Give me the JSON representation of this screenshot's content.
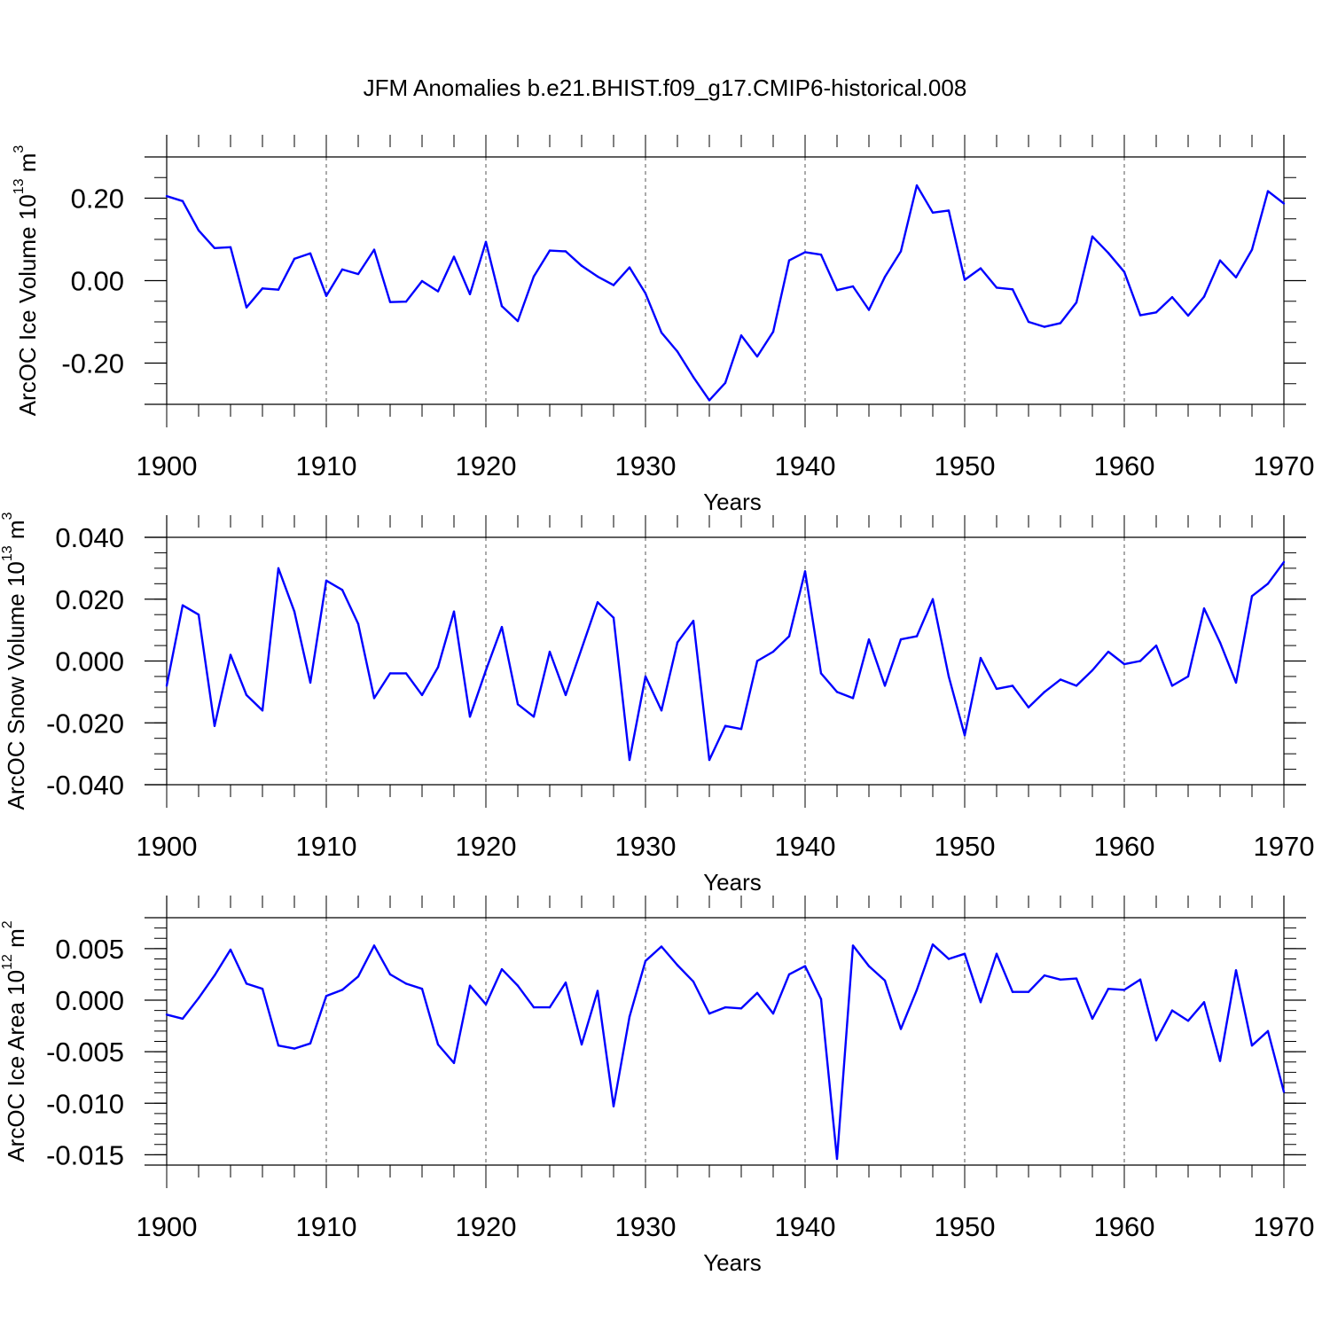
{
  "title": "JFM Anomalies b.e21.BHIST.f09_g17.CMIP6-historical.008",
  "line_color": "#0000ff",
  "chart_data": [
    {
      "type": "line",
      "title": "JFM Anomalies b.e21.BHIST.f09_g17.CMIP6-historical.008",
      "xlabel": "Years",
      "ylabel": "ArcOC Ice Volume 10",
      "ylabel_sup": "13",
      "ylabel_unit": " m",
      "ylabel_unit_sup": "3",
      "xlim": [
        1900,
        1970
      ],
      "ylim": [
        -0.3,
        0.3
      ],
      "xticks": [
        1900,
        1910,
        1920,
        1930,
        1940,
        1950,
        1960,
        1970
      ],
      "xtick_labels": [
        "1900",
        "1910",
        "1920",
        "1930",
        "1940",
        "1950",
        "1960",
        "1970"
      ],
      "yticks": [
        -0.2,
        0.0,
        0.2
      ],
      "ytick_labels": [
        "-0.20",
        "0.00",
        "0.20"
      ],
      "yminor": 0.05,
      "x_start": 1900,
      "values": [
        0.205,
        0.193,
        0.122,
        0.079,
        0.081,
        -0.065,
        -0.019,
        -0.022,
        0.053,
        0.066,
        -0.037,
        0.027,
        0.016,
        0.075,
        -0.052,
        -0.051,
        -0.001,
        -0.026,
        0.058,
        -0.033,
        0.094,
        -0.062,
        -0.098,
        0.01,
        0.073,
        0.071,
        0.036,
        0.01,
        -0.011,
        0.032,
        -0.031,
        -0.126,
        -0.172,
        -0.234,
        -0.29,
        -0.248,
        -0.133,
        -0.184,
        -0.124,
        0.049,
        0.069,
        0.063,
        -0.023,
        -0.014,
        -0.071,
        0.009,
        0.071,
        0.231,
        0.165,
        0.17,
        0.002,
        0.03,
        -0.017,
        -0.021,
        -0.1,
        -0.112,
        -0.103,
        -0.053,
        0.107,
        0.067,
        0.021,
        -0.084,
        -0.077,
        -0.04,
        -0.085,
        -0.039,
        0.049,
        0.008,
        0.075,
        0.217,
        0.187
      ]
    },
    {
      "type": "line",
      "xlabel": "Years",
      "ylabel": "ArcOC Snow Volume 10",
      "ylabel_sup": "13",
      "ylabel_unit": " m",
      "ylabel_unit_sup": "3",
      "xlim": [
        1900,
        1970
      ],
      "ylim": [
        -0.04,
        0.04
      ],
      "xticks": [
        1900,
        1910,
        1920,
        1930,
        1940,
        1950,
        1960,
        1970
      ],
      "xtick_labels": [
        "1900",
        "1910",
        "1920",
        "1930",
        "1940",
        "1950",
        "1960",
        "1970"
      ],
      "yticks": [
        -0.04,
        -0.02,
        0.0,
        0.02,
        0.04
      ],
      "ytick_labels": [
        "-0.040",
        "-0.020",
        "0.000",
        "0.020",
        "0.040"
      ],
      "yminor": 0.005,
      "x_start": 1900,
      "values": [
        -0.008,
        0.018,
        0.015,
        -0.021,
        0.002,
        -0.011,
        -0.016,
        0.03,
        0.016,
        -0.007,
        0.026,
        0.023,
        0.012,
        -0.012,
        -0.004,
        -0.004,
        -0.011,
        -0.002,
        0.016,
        -0.018,
        -0.003,
        0.011,
        -0.014,
        -0.018,
        0.003,
        -0.011,
        0.004,
        0.019,
        0.014,
        -0.032,
        -0.005,
        -0.016,
        0.006,
        0.013,
        -0.032,
        -0.021,
        -0.022,
        0.0,
        0.003,
        0.008,
        0.029,
        -0.004,
        -0.01,
        -0.012,
        0.007,
        -0.008,
        0.007,
        0.008,
        0.02,
        -0.005,
        -0.024,
        0.001,
        -0.009,
        -0.008,
        -0.015,
        -0.01,
        -0.006,
        -0.008,
        -0.003,
        0.003,
        -0.001,
        0.0,
        0.005,
        -0.008,
        -0.005,
        0.017,
        0.006,
        -0.007,
        0.021,
        0.025,
        0.032
      ]
    },
    {
      "type": "line",
      "xlabel": "Years",
      "ylabel": "ArcOC Ice Area 10",
      "ylabel_sup": "12",
      "ylabel_unit": " m",
      "ylabel_unit_sup": "2",
      "xlim": [
        1900,
        1970
      ],
      "ylim": [
        -0.016,
        0.008
      ],
      "xticks": [
        1900,
        1910,
        1920,
        1930,
        1940,
        1950,
        1960,
        1970
      ],
      "xtick_labels": [
        "1900",
        "1910",
        "1920",
        "1930",
        "1940",
        "1950",
        "1960",
        "1970"
      ],
      "yticks": [
        -0.015,
        -0.01,
        -0.005,
        0.0,
        0.005
      ],
      "ytick_labels": [
        "-0.015",
        "-0.010",
        "-0.005",
        "0.000",
        "0.005"
      ],
      "yminor": 0.001,
      "x_start": 1900,
      "values": [
        -0.0014,
        -0.0018,
        0.0002,
        0.0024,
        0.0049,
        0.0016,
        0.0011,
        -0.0044,
        -0.0047,
        -0.0042,
        0.0004,
        0.001,
        0.0023,
        0.0053,
        0.0025,
        0.0016,
        0.0011,
        -0.0043,
        -0.0061,
        0.0014,
        -0.0004,
        0.003,
        0.0014,
        -0.0007,
        -0.0007,
        0.0017,
        -0.0043,
        0.0009,
        -0.0103,
        -0.0016,
        0.0038,
        0.0052,
        0.0034,
        0.0018,
        -0.0013,
        -0.0007,
        -0.0008,
        0.0007,
        -0.0013,
        0.0025,
        0.0033,
        0.0001,
        -0.0154,
        0.0053,
        0.0033,
        0.0019,
        -0.0028,
        0.001,
        0.0054,
        0.004,
        0.0045,
        -0.0002,
        0.0045,
        0.0008,
        0.0008,
        0.0024,
        0.002,
        0.0021,
        -0.0018,
        0.0011,
        0.001,
        0.002,
        -0.0039,
        -0.001,
        -0.002,
        -0.0002,
        -0.0059,
        0.0029,
        -0.0044,
        -0.003,
        -0.0089
      ]
    }
  ]
}
